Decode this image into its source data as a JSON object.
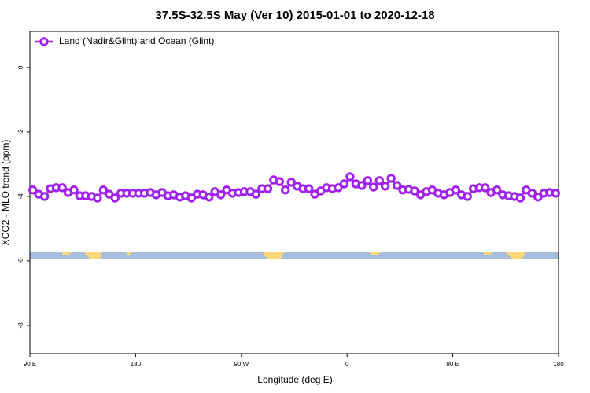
{
  "chart_data": {
    "type": "line",
    "title": "37.5S-32.5S May (Ver 10)   2015-01-01 to 2020-12-18",
    "xlabel": "Longitude (deg E)",
    "ylabel": "XCO2 - MLO trend (ppm)",
    "x": [
      92.5,
      97.5,
      102.5,
      107.5,
      112.5,
      117.5,
      122.5,
      127.5,
      132.5,
      137.5,
      142.5,
      147.5,
      152.5,
      157.5,
      162.5,
      167.5,
      172.5,
      177.5,
      182.5,
      187.5,
      192.5,
      197.5,
      202.5,
      207.5,
      212.5,
      217.5,
      222.5,
      227.5,
      232.5,
      237.5,
      242.5,
      247.5,
      252.5,
      257.5,
      262.5,
      267.5,
      272.5,
      277.5,
      282.5,
      287.5,
      292.5,
      297.5,
      302.5,
      307.5,
      312.5,
      317.5,
      322.5,
      327.5,
      332.5,
      337.5,
      342.5,
      347.5,
      352.5,
      357.5,
      362.5,
      367.5,
      372.5,
      377.5,
      382.5,
      387.5,
      392.5,
      397.5,
      402.5,
      407.5,
      412.5,
      417.5,
      422.5,
      427.5,
      432.5,
      437.5,
      442.5,
      447.5,
      452.5,
      457.5,
      462.5,
      467.5,
      472.5,
      477.5,
      482.5,
      487.5,
      492.5,
      497.5,
      502.5,
      507.5,
      512.5,
      517.5,
      522.5,
      527.5,
      532.5,
      537.5
    ],
    "series": [
      {
        "name": "Land (Nadir&Glint) and Ocean (Glint)",
        "color": "#a020f0",
        "values": [
          -3.8,
          -3.93,
          -4.0,
          -3.76,
          -3.73,
          -3.73,
          -3.88,
          -3.8,
          -3.98,
          -3.98,
          -4.0,
          -4.05,
          -3.8,
          -3.93,
          -4.05,
          -3.9,
          -3.9,
          -3.9,
          -3.9,
          -3.9,
          -3.88,
          -3.95,
          -3.88,
          -3.98,
          -3.95,
          -4.02,
          -3.98,
          -4.05,
          -3.93,
          -3.95,
          -4.02,
          -3.85,
          -3.95,
          -3.8,
          -3.9,
          -3.88,
          -3.85,
          -3.85,
          -3.93,
          -3.76,
          -3.76,
          -3.49,
          -3.54,
          -3.8,
          -3.56,
          -3.68,
          -3.76,
          -3.76,
          -3.93,
          -3.83,
          -3.73,
          -3.76,
          -3.73,
          -3.61,
          -3.39,
          -3.61,
          -3.66,
          -3.51,
          -3.71,
          -3.51,
          -3.68,
          -3.44,
          -3.66,
          -3.8,
          -3.78,
          -3.83,
          -3.95,
          -3.85,
          -3.8,
          -3.9,
          -3.95,
          -3.88,
          -3.8,
          -3.95,
          -4.0,
          -3.76,
          -3.73,
          -3.73,
          -3.88,
          -3.8,
          -3.95,
          -3.98,
          -4.0,
          -4.05,
          -3.8,
          -3.9,
          -4.02,
          -3.9,
          -3.88,
          -3.9
        ]
      }
    ],
    "xlim": [
      90,
      540
    ],
    "xticks": [
      {
        "value": 90,
        "label": "90 E"
      },
      180,
      {
        "value": 270,
        "label": "90 W"
      },
      {
        "value": 360,
        "label": "0"
      },
      {
        "value": 450,
        "label": "90 E"
      },
      {
        "value": 540,
        "label": "180"
      }
    ],
    "ylim": [
      -8.88,
      1.12
    ],
    "yticks": [
      0,
      -2,
      -4,
      -6,
      -8
    ],
    "legend": "top-left"
  }
}
